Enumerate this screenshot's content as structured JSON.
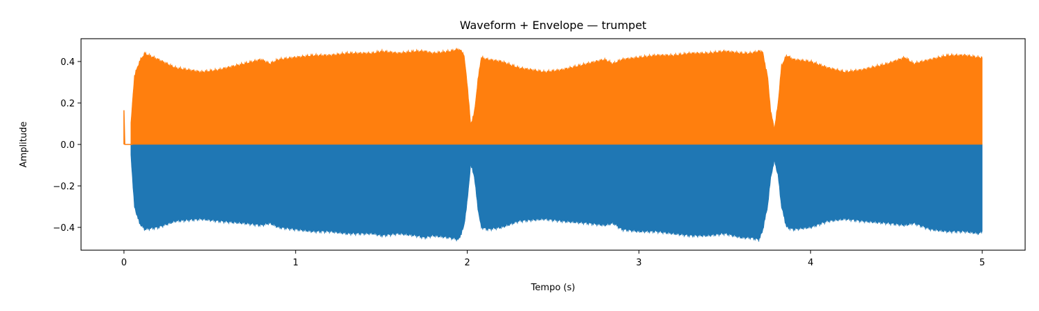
{
  "chart_data": {
    "type": "area",
    "title": "Waveform + Envelope — trumpet",
    "xlabel": "Tempo (s)",
    "ylabel": "Amplitude",
    "xlim": [
      -0.25,
      5.25
    ],
    "ylim": [
      -0.51,
      0.51
    ],
    "x_ticks": [
      0,
      1,
      2,
      3,
      4,
      5
    ],
    "x_tick_labels": [
      "0",
      "1",
      "2",
      "3",
      "4",
      "5"
    ],
    "y_ticks": [
      -0.4,
      -0.2,
      0.0,
      0.2,
      0.4
    ],
    "y_tick_labels": [
      "−0.4",
      "−0.2",
      "0.0",
      "0.2",
      "0.4"
    ],
    "grid": false,
    "colors": {
      "waveform": "#1f77b4",
      "envelope": "#ff7f0e"
    },
    "series": [
      {
        "role": "waveform",
        "color": "#1f77b4",
        "x": [
          0.04,
          0.06,
          0.09,
          0.12,
          0.2,
          0.3,
          0.45,
          0.55,
          0.7,
          0.8,
          0.85,
          0.9,
          1.0,
          1.1,
          1.2,
          1.3,
          1.45,
          1.5,
          1.6,
          1.7,
          1.75,
          1.8,
          1.9,
          1.95,
          1.98,
          2.0,
          2.02,
          2.04,
          2.06,
          2.08,
          2.12,
          2.2,
          2.3,
          2.45,
          2.55,
          2.7,
          2.8,
          2.85,
          2.9,
          3.0,
          3.1,
          3.2,
          3.3,
          3.4,
          3.5,
          3.6,
          3.65,
          3.7,
          3.72,
          3.75,
          3.77,
          3.79,
          3.81,
          3.83,
          3.86,
          3.9,
          4.0,
          4.1,
          4.2,
          4.3,
          4.45,
          4.55,
          4.6,
          4.7,
          4.8,
          4.9,
          4.98,
          5.0
        ],
        "min": [
          -0.05,
          -0.3,
          -0.38,
          -0.41,
          -0.4,
          -0.37,
          -0.36,
          -0.37,
          -0.38,
          -0.39,
          -0.38,
          -0.4,
          -0.41,
          -0.42,
          -0.42,
          -0.43,
          -0.43,
          -0.44,
          -0.43,
          -0.44,
          -0.45,
          -0.44,
          -0.45,
          -0.46,
          -0.4,
          -0.28,
          -0.1,
          -0.15,
          -0.3,
          -0.4,
          -0.41,
          -0.4,
          -0.37,
          -0.36,
          -0.37,
          -0.38,
          -0.39,
          -0.38,
          -0.41,
          -0.42,
          -0.42,
          -0.43,
          -0.44,
          -0.44,
          -0.43,
          -0.45,
          -0.45,
          -0.46,
          -0.42,
          -0.3,
          -0.15,
          -0.08,
          -0.15,
          -0.3,
          -0.4,
          -0.41,
          -0.4,
          -0.37,
          -0.36,
          -0.37,
          -0.38,
          -0.39,
          -0.38,
          -0.41,
          -0.42,
          -0.42,
          -0.43,
          -0.42
        ],
        "max": [
          0.0,
          0.0,
          0.0,
          0.0,
          0.0,
          0.0,
          0.0,
          0.0,
          0.0,
          0.0,
          0.0,
          0.0,
          0.0,
          0.0,
          0.0,
          0.0,
          0.0,
          0.0,
          0.0,
          0.0,
          0.0,
          0.0,
          0.0,
          0.0,
          0.0,
          0.0,
          0.0,
          0.0,
          0.0,
          0.0,
          0.0,
          0.0,
          0.0,
          0.0,
          0.0,
          0.0,
          0.0,
          0.0,
          0.0,
          0.0,
          0.0,
          0.0,
          0.0,
          0.0,
          0.0,
          0.0,
          0.0,
          0.0,
          0.0,
          0.0,
          0.0,
          0.0,
          0.0,
          0.0,
          0.0,
          0.0,
          0.0,
          0.0,
          0.0,
          0.0,
          0.0,
          0.0,
          0.0,
          0.0,
          0.0,
          0.0,
          0.0,
          0.0
        ]
      },
      {
        "role": "envelope",
        "color": "#ff7f0e",
        "x": [
          0.04,
          0.06,
          0.09,
          0.12,
          0.2,
          0.3,
          0.45,
          0.55,
          0.7,
          0.8,
          0.85,
          0.9,
          1.0,
          1.1,
          1.2,
          1.3,
          1.45,
          1.5,
          1.6,
          1.7,
          1.75,
          1.8,
          1.9,
          1.95,
          1.98,
          2.0,
          2.02,
          2.04,
          2.06,
          2.08,
          2.12,
          2.2,
          2.3,
          2.45,
          2.55,
          2.7,
          2.8,
          2.85,
          2.9,
          3.0,
          3.1,
          3.2,
          3.3,
          3.4,
          3.5,
          3.6,
          3.65,
          3.7,
          3.72,
          3.75,
          3.77,
          3.79,
          3.81,
          3.83,
          3.86,
          3.9,
          4.0,
          4.1,
          4.2,
          4.3,
          4.45,
          4.55,
          4.6,
          4.7,
          4.8,
          4.9,
          4.98,
          5.0
        ],
        "min": [
          0.0,
          0.0,
          0.0,
          0.0,
          0.0,
          0.0,
          0.0,
          0.0,
          0.0,
          0.0,
          0.0,
          0.0,
          0.0,
          0.0,
          0.0,
          0.0,
          0.0,
          0.0,
          0.0,
          0.0,
          0.0,
          0.0,
          0.0,
          0.0,
          0.0,
          0.0,
          0.0,
          0.0,
          0.0,
          0.0,
          0.0,
          0.0,
          0.0,
          0.0,
          0.0,
          0.0,
          0.0,
          0.0,
          0.0,
          0.0,
          0.0,
          0.0,
          0.0,
          0.0,
          0.0,
          0.0,
          0.0,
          0.0,
          0.0,
          0.0,
          0.0,
          0.0,
          0.0,
          0.0,
          0.0,
          0.0,
          0.0,
          0.0,
          0.0,
          0.0,
          0.0,
          0.0,
          0.0,
          0.0,
          0.0,
          0.0,
          0.0,
          0.0
        ],
        "max": [
          0.1,
          0.33,
          0.4,
          0.44,
          0.41,
          0.37,
          0.35,
          0.36,
          0.39,
          0.41,
          0.39,
          0.41,
          0.42,
          0.43,
          0.43,
          0.44,
          0.44,
          0.45,
          0.44,
          0.45,
          0.45,
          0.44,
          0.45,
          0.46,
          0.44,
          0.3,
          0.1,
          0.15,
          0.3,
          0.42,
          0.41,
          0.4,
          0.37,
          0.35,
          0.36,
          0.39,
          0.41,
          0.39,
          0.41,
          0.42,
          0.43,
          0.43,
          0.44,
          0.44,
          0.45,
          0.44,
          0.44,
          0.45,
          0.45,
          0.33,
          0.15,
          0.08,
          0.2,
          0.38,
          0.43,
          0.41,
          0.4,
          0.37,
          0.35,
          0.36,
          0.39,
          0.42,
          0.39,
          0.41,
          0.43,
          0.43,
          0.42,
          0.42
        ]
      }
    ],
    "annotations": [
      {
        "series": "envelope",
        "x": [
          0.0,
          0.0,
          0.005,
          0.05
        ],
        "y": [
          0.0,
          0.165,
          0.0,
          0.0
        ]
      }
    ]
  }
}
